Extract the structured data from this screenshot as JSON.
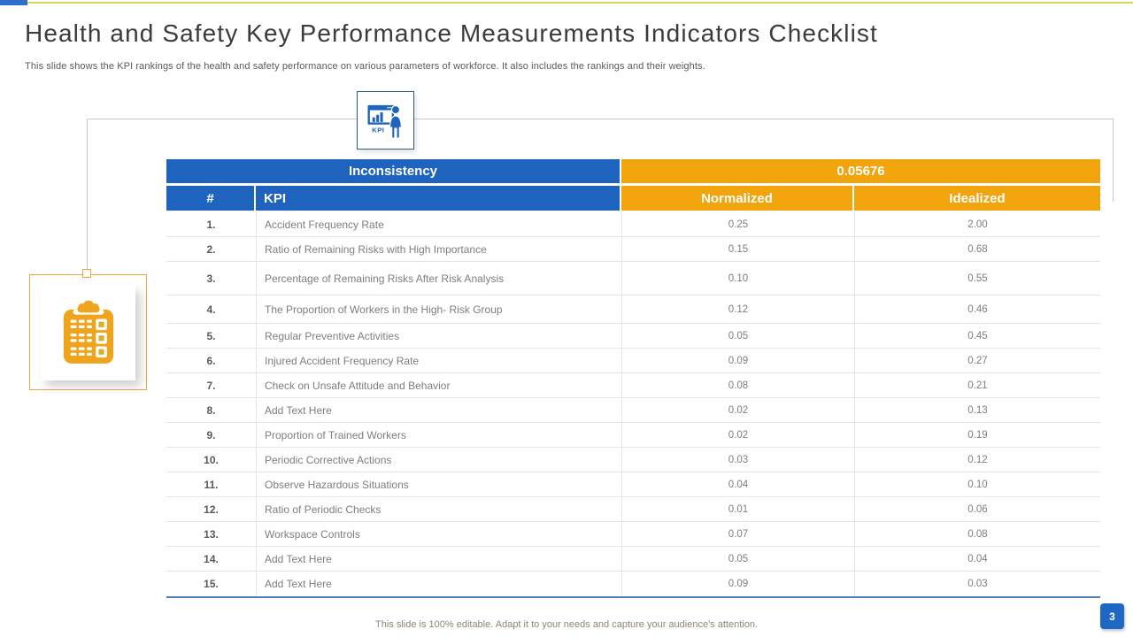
{
  "slide": {
    "title": "Health and Safety Key Performance Measurements Indicators Checklist",
    "subtitle": "This slide shows the KPI rankings of the health and safety performance on various parameters of workforce. It also includes the rankings and their weights.",
    "footer_note": "This slide is 100% editable. Adapt it to your needs and capture your audience's attention.",
    "page_number": "3"
  },
  "icons": {
    "top_icon": "kpi-dashboard-presenter-icon",
    "top_icon_text": "KPI",
    "left_icon": "clipboard-checklist-icon"
  },
  "colors": {
    "header_blue": "#1E63BE",
    "header_orange": "#F2A40D",
    "table_bottom_border": "#4D7EBB",
    "top_line_yellow": "#DCD15E",
    "accent_blue": "#2F6DC9",
    "page_badge_blue": "#1E68C4"
  },
  "table": {
    "summary": {
      "label": "Inconsistency",
      "value": "0.05676"
    },
    "columns": [
      "#",
      "KPI",
      "Normalized",
      "Idealized"
    ],
    "rows": [
      {
        "num": "1.",
        "kpi": "Accident Frequency Rate",
        "normalized": "0.25",
        "idealized": "2.00"
      },
      {
        "num": "2.",
        "kpi": "Ratio of Remaining Risks with High Importance",
        "normalized": "0.15",
        "idealized": "0.68"
      },
      {
        "num": "3.",
        "kpi": "Percentage of Remaining Risks After Risk Analysis",
        "normalized": "0.10",
        "idealized": "0.55"
      },
      {
        "num": "4.",
        "kpi": "The Proportion of Workers in the High- Risk Group",
        "normalized": "0.12",
        "idealized": "0.46"
      },
      {
        "num": "5.",
        "kpi": "Regular Preventive Activities",
        "normalized": "0.05",
        "idealized": "0.45"
      },
      {
        "num": "6.",
        "kpi": "Injured Accident Frequency Rate",
        "normalized": "0.09",
        "idealized": "0.27"
      },
      {
        "num": "7.",
        "kpi": "Check on Unsafe Attitude and Behavior",
        "normalized": "0.08",
        "idealized": "0.21"
      },
      {
        "num": "8.",
        "kpi": "Add Text Here",
        "normalized": "0.02",
        "idealized": "0.13"
      },
      {
        "num": "9.",
        "kpi": "Proportion of Trained Workers",
        "normalized": "0.02",
        "idealized": "0.19"
      },
      {
        "num": "10.",
        "kpi": "Periodic Corrective Actions",
        "normalized": "0.03",
        "idealized": "0.12"
      },
      {
        "num": "11.",
        "kpi": "Observe Hazardous Situations",
        "normalized": "0.04",
        "idealized": "0.10"
      },
      {
        "num": "12.",
        "kpi": "Ratio of Periodic Checks",
        "normalized": "0.01",
        "idealized": "0.06"
      },
      {
        "num": "13.",
        "kpi": "Workspace Controls",
        "normalized": "0.07",
        "idealized": "0.08"
      },
      {
        "num": "14.",
        "kpi": "Add Text Here",
        "normalized": "0.05",
        "idealized": "0.04"
      },
      {
        "num": "15.",
        "kpi": "Add Text Here",
        "normalized": "0.09",
        "idealized": "0.03"
      }
    ]
  }
}
